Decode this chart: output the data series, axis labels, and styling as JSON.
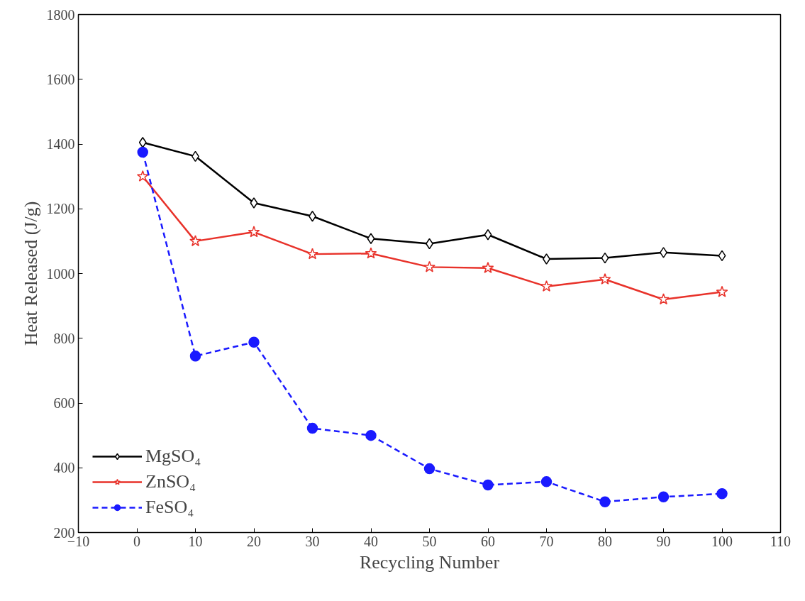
{
  "chart_data": {
    "type": "line",
    "xlabel": "Recycling Number",
    "ylabel": "Heat Released (J/g)",
    "x": [
      1,
      10,
      20,
      30,
      40,
      50,
      60,
      70,
      80,
      90,
      100
    ],
    "xlim": [
      -10,
      110
    ],
    "xticks": [
      -10,
      0,
      10,
      20,
      30,
      40,
      50,
      60,
      70,
      80,
      90,
      100,
      110
    ],
    "ylim": [
      200,
      1800
    ],
    "yticks": [
      200,
      400,
      600,
      800,
      1000,
      1200,
      1400,
      1600,
      1800
    ],
    "grid": false,
    "legend": "bottom left",
    "series": [
      {
        "name": "MgSO₄",
        "color": "#000000",
        "marker": "diamond",
        "line_style": "solid",
        "values": [
          1405,
          1362,
          1218,
          1177,
          1108,
          1092,
          1120,
          1045,
          1048,
          1065,
          1055
        ]
      },
      {
        "name": "ZnSO₄",
        "color": "#e8322a",
        "marker": "star",
        "line_style": "solid",
        "values": [
          1300,
          1100,
          1128,
          1060,
          1062,
          1020,
          1017,
          960,
          982,
          920,
          943
        ]
      },
      {
        "name": "FeSO₄",
        "color": "#1a1aff",
        "marker": "circle",
        "line_style": "dashed",
        "values": [
          1375,
          745,
          788,
          522,
          500,
          397,
          347,
          357,
          295,
          310,
          320
        ]
      }
    ]
  }
}
